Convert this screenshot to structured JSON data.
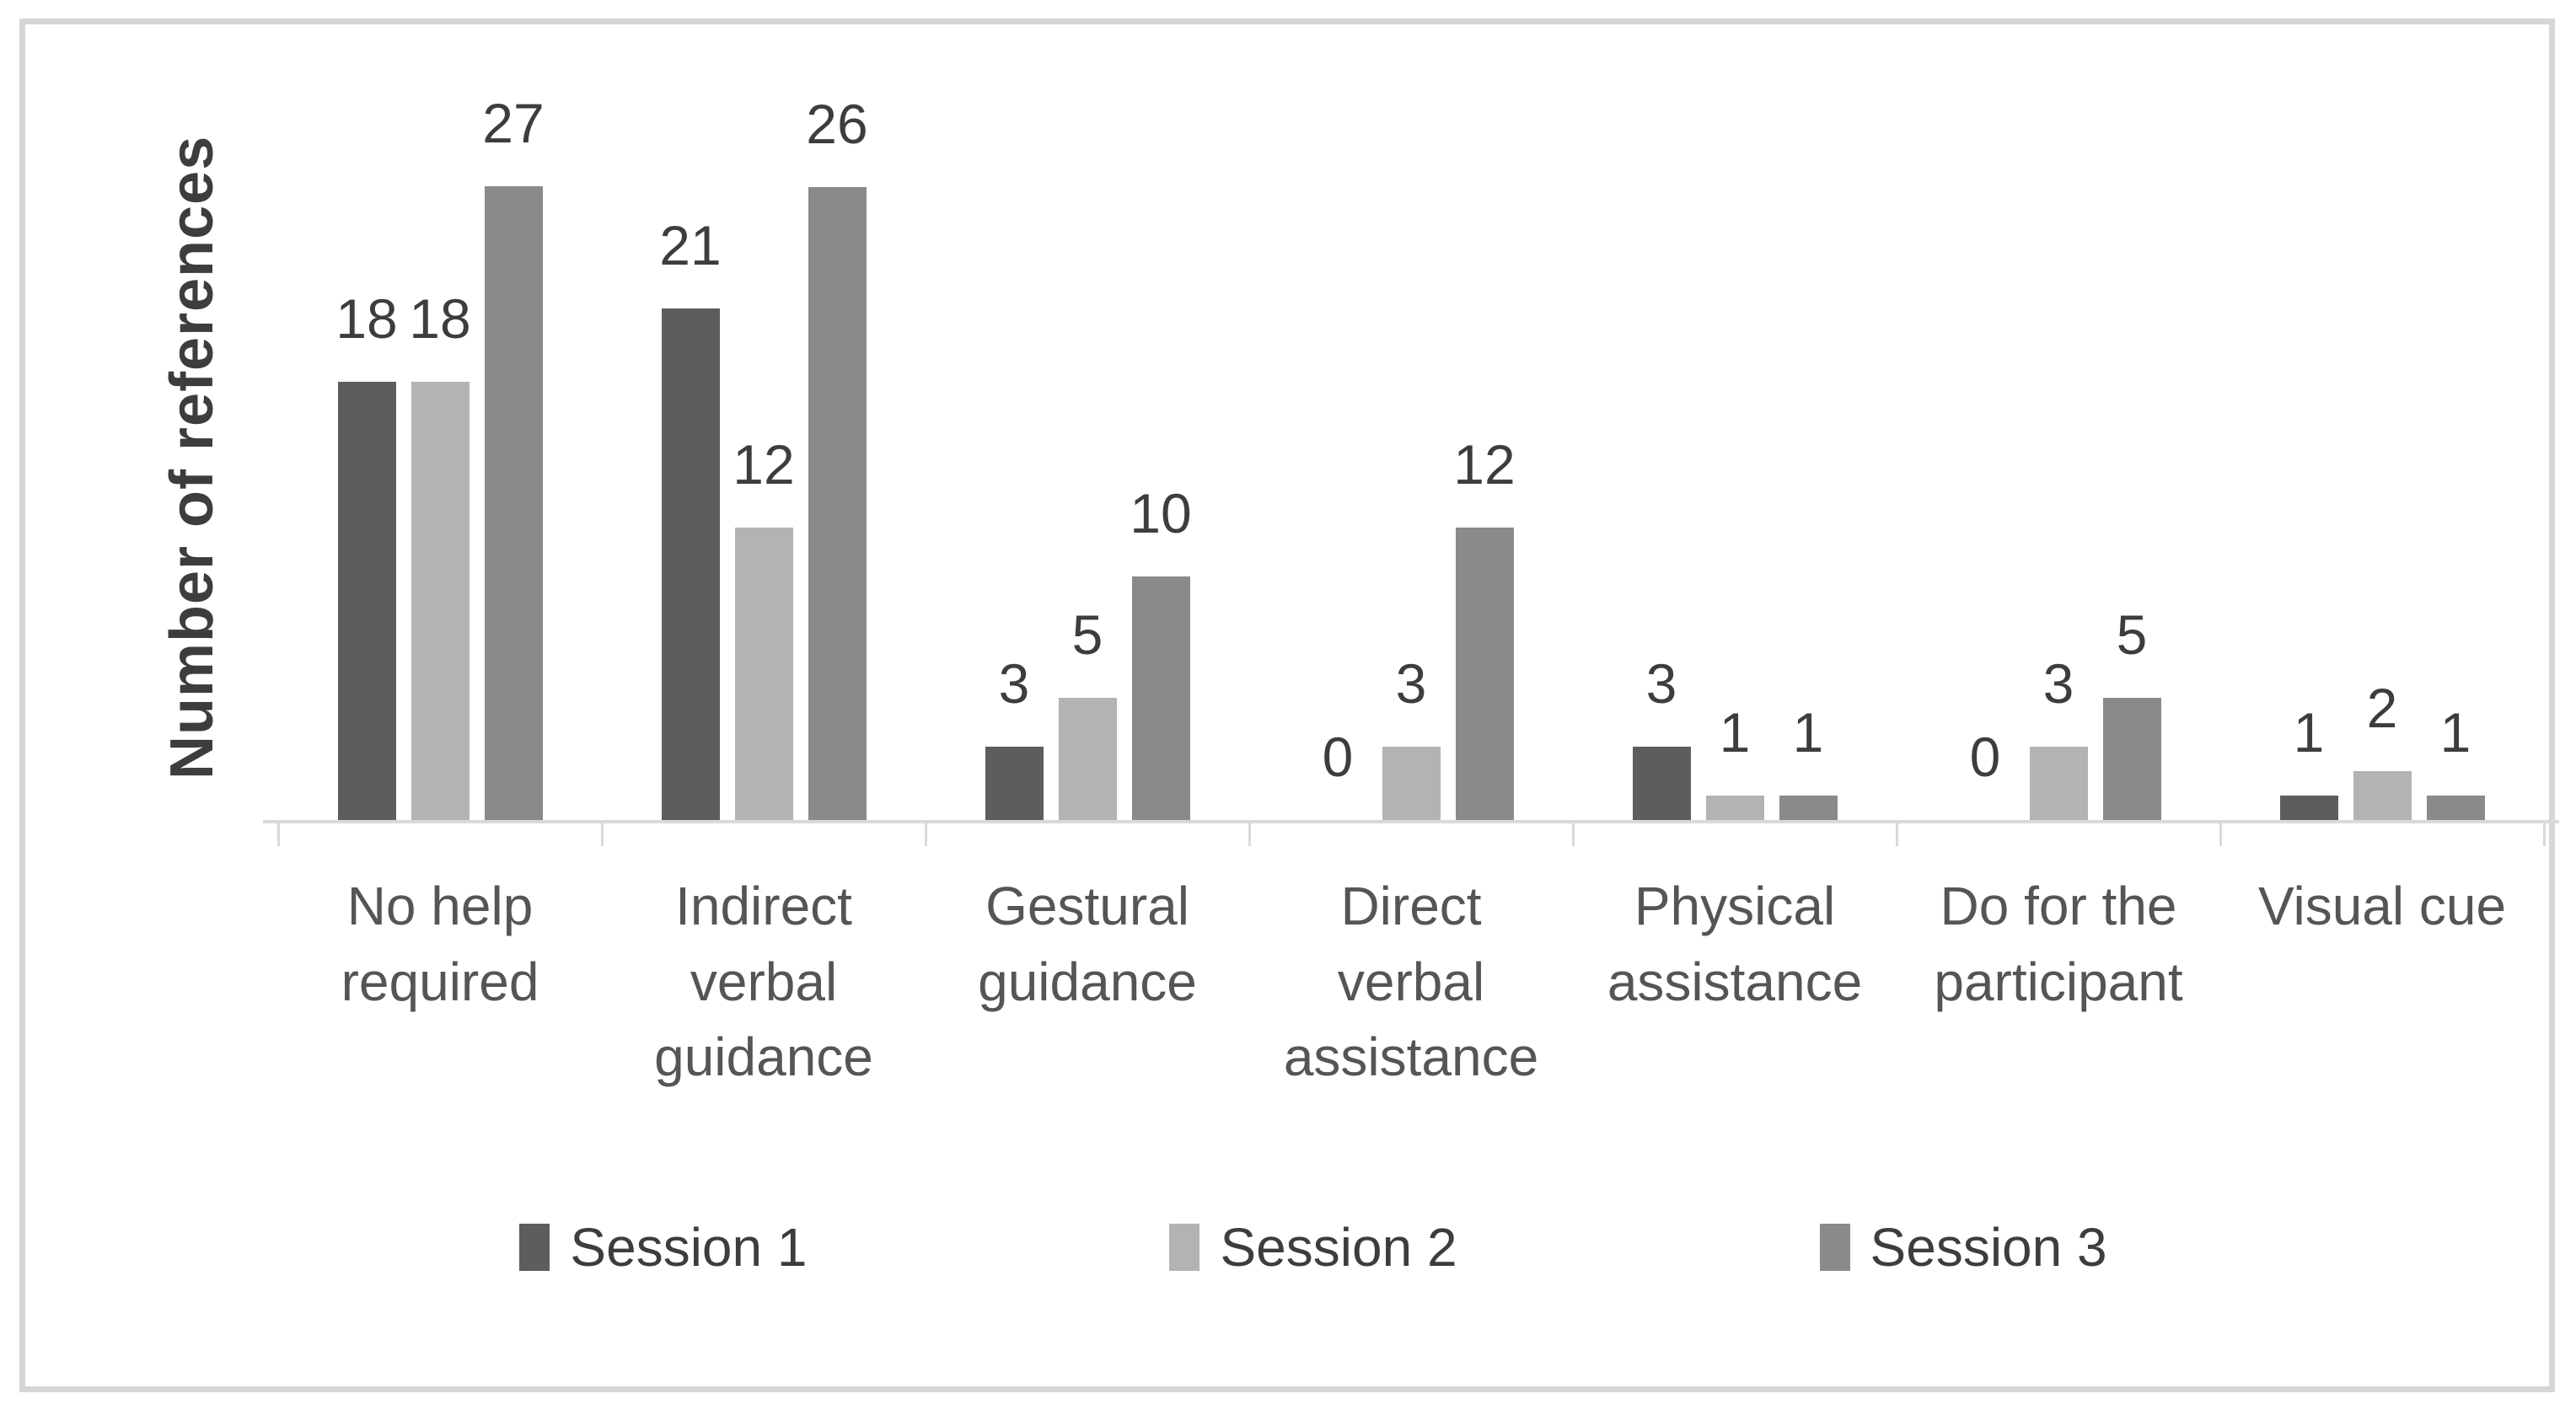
{
  "chart_data": {
    "type": "bar",
    "title": "",
    "xlabel": "",
    "ylabel": "Number of references",
    "categories": [
      "No help required",
      "Indirect verbal guidance",
      "Gestural guidance",
      "Direct verbal assistance",
      "Physical assistance",
      "Do for the participant",
      "Visual cue"
    ],
    "series": [
      {
        "name": "Session 1",
        "color": "#5d5d5d",
        "values": [
          18,
          21,
          3,
          0,
          3,
          0,
          1
        ]
      },
      {
        "name": "Session 2",
        "color": "#b3b3b3",
        "values": [
          18,
          12,
          5,
          3,
          1,
          3,
          2
        ]
      },
      {
        "name": "Session 3",
        "color": "#8a8a8a",
        "values": [
          27,
          26,
          10,
          12,
          1,
          5,
          1
        ]
      }
    ],
    "ylim": [
      0,
      29
    ],
    "grid": false,
    "y_axis_ticks_visible": false,
    "data_labels": "outside-end",
    "legend_position": "bottom"
  },
  "style": {
    "border_color": "#d6d6d6",
    "axis_color": "#d9d9d9",
    "value_label_color": "#3d3d3d",
    "category_label_color": "#555555",
    "ylabel_color": "#3d3d3d",
    "background": "#ffffff"
  }
}
